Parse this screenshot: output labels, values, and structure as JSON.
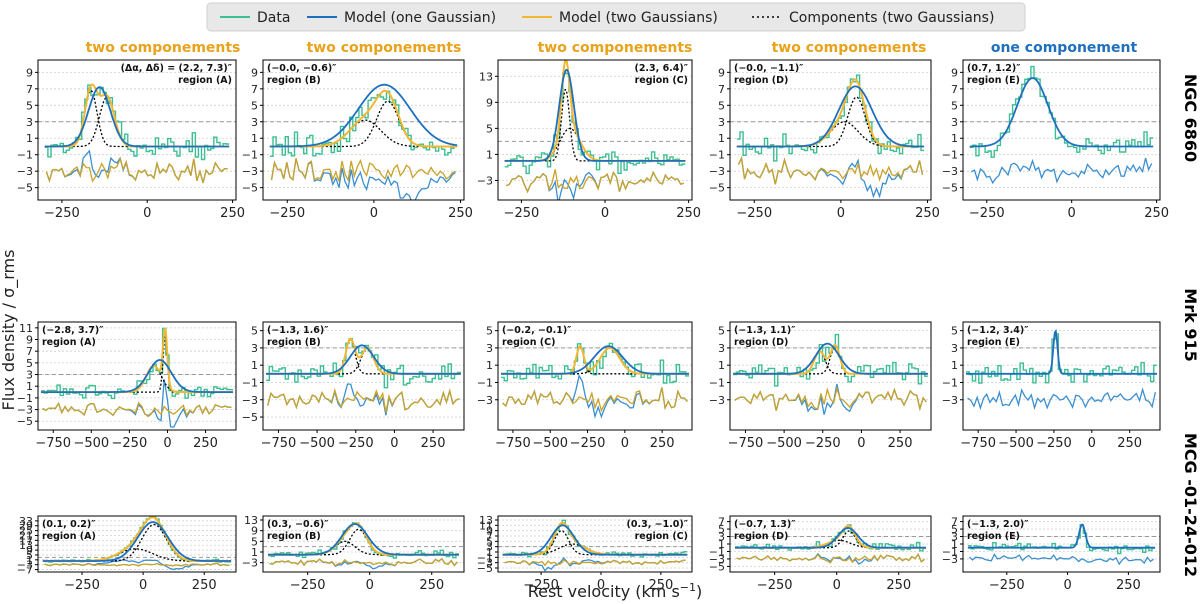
{
  "figure": {
    "ylabel": "Flux density / σ_rms",
    "xlabel_text": "Rest velocity (km s",
    "xlabel_sup": "−1",
    "xlabel_close": ")"
  },
  "colors": {
    "data": "#3dbf94",
    "one": "#1f6fbf",
    "two": "#f5b731",
    "comp": "#000000",
    "resid_one": "#3b8fd0",
    "resid_two": "#c9a227",
    "title_two": "#e9a21b",
    "title_one": "#1f6fbf"
  },
  "legend": {
    "items": [
      {
        "label": "Data",
        "style": "data"
      },
      {
        "label": "Model (one Gaussian)",
        "style": "one"
      },
      {
        "label": "Model (two Gaussians)",
        "style": "two"
      },
      {
        "label": "Components (two Gaussians)",
        "style": "comp"
      }
    ]
  },
  "column_titles": [
    {
      "text": "two componements",
      "kind": "two"
    },
    {
      "text": "two componements",
      "kind": "two"
    },
    {
      "text": "two componements",
      "kind": "two"
    },
    {
      "text": "two componements",
      "kind": "two"
    },
    {
      "text": "one componement",
      "kind": "one"
    }
  ],
  "row_labels": [
    "NGC 6860",
    "Mrk 915",
    "MCG -01-24-012"
  ],
  "chart_data": [
    {
      "type": "line",
      "row": 0,
      "col": 0,
      "xlim": [
        -320,
        260
      ],
      "ylim": [
        -6.5,
        10.5
      ],
      "xticks": [
        -250,
        0,
        250
      ],
      "yticks": [
        -5,
        -3,
        -1,
        1,
        3,
        5,
        7,
        9
      ],
      "offset": [
        2.2,
        7.3
      ],
      "region": "(A)",
      "offset_label": "(Δα, Δδ) = (2.2, 7.3)″",
      "label_pos": "right",
      "one_gauss": {
        "amp": 7.2,
        "mu": -140,
        "sigma": 32
      },
      "two_gauss": [
        {
          "amp": 6.8,
          "mu": -165,
          "sigma": 18
        },
        {
          "amp": 6.0,
          "mu": -118,
          "sigma": 22
        }
      ],
      "data_noise": 1.1,
      "resid_offset": -3
    },
    {
      "type": "line",
      "row": 0,
      "col": 1,
      "xlim": [
        -320,
        260
      ],
      "ylim": [
        -6.5,
        10.5
      ],
      "xticks": [
        -250,
        0,
        250
      ],
      "yticks": [
        -5,
        -3,
        -1,
        1,
        3,
        5,
        7,
        9
      ],
      "offset": [
        -0.0,
        -0.6
      ],
      "region": "(B)",
      "offset_label": "(−0.0, −0.6)″",
      "label_pos": "left",
      "one_gauss": {
        "amp": 7.5,
        "mu": 30,
        "sigma": 75
      },
      "two_gauss": [
        {
          "amp": 5.5,
          "mu": 40,
          "sigma": 32
        },
        {
          "amp": 3.2,
          "mu": -25,
          "sigma": 45
        }
      ],
      "data_noise": 1.2,
      "resid_offset": -3
    },
    {
      "type": "line",
      "row": 0,
      "col": 2,
      "xlim": [
        -320,
        260
      ],
      "ylim": [
        -6,
        15.5
      ],
      "xticks": [
        -250,
        0,
        250
      ],
      "yticks": [
        -3,
        1,
        5,
        9,
        13
      ],
      "offset": [
        2.3,
        6.4
      ],
      "region": "(C)",
      "offset_label": "(2.3, 6.4)″",
      "label_pos": "right",
      "one_gauss": {
        "amp": 14.0,
        "mu": -115,
        "sigma": 22
      },
      "two_gauss": [
        {
          "amp": 11.0,
          "mu": -118,
          "sigma": 12
        },
        {
          "amp": 5.0,
          "mu": -105,
          "sigma": 30
        }
      ],
      "data_noise": 1.3,
      "resid_offset": -3
    },
    {
      "type": "line",
      "row": 0,
      "col": 3,
      "xlim": [
        -320,
        260
      ],
      "ylim": [
        -6.5,
        10.5
      ],
      "xticks": [
        -250,
        0,
        250
      ],
      "yticks": [
        -5,
        -3,
        -1,
        1,
        3,
        5,
        7,
        9
      ],
      "offset": [
        -0.0,
        -1.1
      ],
      "region": "(D)",
      "offset_label": "(−0.0, −1.1)″",
      "label_pos": "left",
      "one_gauss": {
        "amp": 7.3,
        "mu": 42,
        "sigma": 48
      },
      "two_gauss": [
        {
          "amp": 6.0,
          "mu": 45,
          "sigma": 25
        },
        {
          "amp": 3.0,
          "mu": 10,
          "sigma": 40
        }
      ],
      "data_noise": 1.1,
      "resid_offset": -3
    },
    {
      "type": "line",
      "row": 0,
      "col": 4,
      "xlim": [
        -320,
        260
      ],
      "ylim": [
        -6.5,
        10.5
      ],
      "xticks": [
        -250,
        0,
        250
      ],
      "yticks": [
        -5,
        -3,
        -1,
        1,
        3,
        5,
        7,
        9
      ],
      "offset": [
        0.7,
        1.2
      ],
      "region": "(E)",
      "offset_label": "(0.7, 1.2)″",
      "label_pos": "left",
      "one_gauss": {
        "amp": 8.3,
        "mu": -115,
        "sigma": 45
      },
      "two_gauss": [],
      "data_noise": 1.2,
      "resid_offset": -3
    },
    {
      "type": "line",
      "row": 1,
      "col": 0,
      "xlim": [
        -850,
        450
      ],
      "ylim": [
        -6.5,
        12
      ],
      "xticks": [
        -750,
        -500,
        -250,
        0,
        250
      ],
      "yticks": [
        -5,
        -3,
        -1,
        1,
        3,
        5,
        7,
        9,
        11
      ],
      "offset": [
        -2.8,
        3.7
      ],
      "region": "(A)",
      "offset_label": "(−2.8, 3.7)″",
      "label_pos": "left",
      "one_gauss": {
        "amp": 5.5,
        "mu": -50,
        "sigma": 75
      },
      "two_gauss": [
        {
          "amp": 9.5,
          "mu": -15,
          "sigma": 14
        },
        {
          "amp": 4.5,
          "mu": -90,
          "sigma": 50
        }
      ],
      "data_noise": 1.0,
      "resid_offset": -3
    },
    {
      "type": "line",
      "row": 1,
      "col": 1,
      "xlim": [
        -850,
        450
      ],
      "ylim": [
        -6.5,
        6
      ],
      "xticks": [
        -750,
        -500,
        -250,
        0,
        250
      ],
      "yticks": [
        -5,
        -3,
        -1,
        1,
        3,
        5
      ],
      "offset": [
        -1.3,
        1.6
      ],
      "region": "(B)",
      "offset_label": "(−1.3, 1.6)″",
      "label_pos": "left",
      "one_gauss": {
        "amp": 3.3,
        "mu": -210,
        "sigma": 75
      },
      "two_gauss": [
        {
          "amp": 4.0,
          "mu": -285,
          "sigma": 30
        },
        {
          "amp": 3.0,
          "mu": -175,
          "sigma": 40
        }
      ],
      "data_noise": 1.1,
      "resid_offset": -3
    },
    {
      "type": "line",
      "row": 1,
      "col": 2,
      "xlim": [
        -850,
        450
      ],
      "ylim": [
        -6.5,
        6
      ],
      "xticks": [
        -750,
        -500,
        -250,
        0,
        250
      ],
      "yticks": [
        -3,
        -1,
        1,
        3,
        5
      ],
      "offset": [
        -0.2,
        -0.1
      ],
      "region": "(C)",
      "offset_label": "(−0.2, −0.1)″",
      "label_pos": "left",
      "one_gauss": {
        "amp": 3.2,
        "mu": -110,
        "sigma": 95
      },
      "two_gauss": [
        {
          "amp": 3.2,
          "mu": -300,
          "sigma": 25
        },
        {
          "amp": 3.0,
          "mu": -100,
          "sigma": 65
        }
      ],
      "data_noise": 1.1,
      "resid_offset": -3
    },
    {
      "type": "line",
      "row": 1,
      "col": 3,
      "xlim": [
        -850,
        450
      ],
      "ylim": [
        -6.5,
        6
      ],
      "xticks": [
        -750,
        -500,
        -250,
        0,
        250
      ],
      "yticks": [
        -3,
        -1,
        1,
        3,
        5
      ],
      "offset": [
        -1.3,
        1.1
      ],
      "region": "(D)",
      "offset_label": "(−1.3, 1.1)″",
      "label_pos": "left",
      "one_gauss": {
        "amp": 3.5,
        "mu": -220,
        "sigma": 75
      },
      "two_gauss": [
        {
          "amp": 3.3,
          "mu": -170,
          "sigma": 30
        },
        {
          "amp": 2.6,
          "mu": -270,
          "sigma": 35
        }
      ],
      "data_noise": 1.0,
      "resid_offset": -3
    },
    {
      "type": "line",
      "row": 1,
      "col": 4,
      "xlim": [
        -850,
        450
      ],
      "ylim": [
        -6.5,
        6
      ],
      "xticks": [
        -750,
        -500,
        -250,
        0,
        250
      ],
      "yticks": [
        -3,
        -1,
        1,
        3,
        5
      ],
      "offset": [
        -1.2,
        3.4
      ],
      "region": "(E)",
      "offset_label": "(−1.2, 3.4)″",
      "label_pos": "left",
      "one_gauss": {
        "amp": 5.0,
        "mu": -240,
        "sigma": 14
      },
      "two_gauss": [],
      "data_noise": 1.0,
      "resid_offset": -3
    },
    {
      "type": "line",
      "row": 2,
      "col": 0,
      "xlim": [
        -430,
        380
      ],
      "ylim": [
        -9,
        37
      ],
      "xticks": [
        -250,
        0,
        250
      ],
      "yticks": [
        -7,
        -3,
        1,
        5,
        9,
        13,
        17,
        21,
        25,
        29,
        33
      ],
      "offset": [
        0.1,
        0.2
      ],
      "region": "(A)",
      "offset_label": "(0.1, 0.2)″",
      "label_pos": "left",
      "one_gauss": {
        "amp": 32.0,
        "mu": 40,
        "sigma": 62
      },
      "two_gauss": [
        {
          "amp": 30.0,
          "mu": 45,
          "sigma": 50
        },
        {
          "amp": 10.0,
          "mu": -30,
          "sigma": 70
        }
      ],
      "data_noise": 1.0,
      "resid_offset": -3
    },
    {
      "type": "line",
      "row": 2,
      "col": 1,
      "xlim": [
        -430,
        380
      ],
      "ylim": [
        -6.5,
        14.5
      ],
      "xticks": [
        -250,
        0,
        250
      ],
      "yticks": [
        -3,
        1,
        5,
        9,
        13
      ],
      "offset": [
        0.3,
        -0.6
      ],
      "region": "(B)",
      "offset_label": "(0.3, −0.6)″",
      "label_pos": "left",
      "one_gauss": {
        "amp": 11.5,
        "mu": -60,
        "sigma": 52
      },
      "two_gauss": [
        {
          "amp": 9.5,
          "mu": -45,
          "sigma": 35
        },
        {
          "amp": 5.0,
          "mu": -100,
          "sigma": 40
        }
      ],
      "data_noise": 1.0,
      "resid_offset": -3
    },
    {
      "type": "line",
      "row": 2,
      "col": 2,
      "xlim": [
        -430,
        380
      ],
      "ylim": [
        -6.5,
        14.5
      ],
      "xticks": [
        -250,
        0,
        250
      ],
      "yticks": [
        -5,
        -3,
        -1,
        1,
        3,
        5,
        7,
        9,
        11,
        13
      ],
      "offset": [
        0.3,
        -1.0
      ],
      "region": "(C)",
      "offset_label": "(0.3, −1.0)″",
      "label_pos": "right",
      "one_gauss": {
        "amp": 11.0,
        "mu": -160,
        "sigma": 48
      },
      "two_gauss": [
        {
          "amp": 9.0,
          "mu": -165,
          "sigma": 30
        },
        {
          "amp": 4.0,
          "mu": -120,
          "sigma": 55
        }
      ],
      "data_noise": 1.0,
      "resid_offset": -3
    },
    {
      "type": "line",
      "row": 2,
      "col": 3,
      "xlim": [
        -430,
        380
      ],
      "ylim": [
        -6.5,
        8.5
      ],
      "xticks": [
        -250,
        0,
        250
      ],
      "yticks": [
        -5,
        -3,
        -1,
        1,
        3,
        5,
        7
      ],
      "offset": [
        -0.7,
        1.3
      ],
      "region": "(D)",
      "offset_label": "(−0.7, 1.3)″",
      "label_pos": "left",
      "one_gauss": {
        "amp": 5.3,
        "mu": 45,
        "sigma": 40
      },
      "two_gauss": [
        {
          "amp": 4.5,
          "mu": 50,
          "sigma": 25
        },
        {
          "amp": 2.0,
          "mu": 10,
          "sigma": 45
        }
      ],
      "data_noise": 1.0,
      "resid_offset": -3
    },
    {
      "type": "line",
      "row": 2,
      "col": 4,
      "xlim": [
        -430,
        380
      ],
      "ylim": [
        -6.5,
        8.5
      ],
      "xticks": [
        -250,
        0,
        250
      ],
      "yticks": [
        -3,
        -1,
        1,
        3,
        5,
        7
      ],
      "offset": [
        -1.3,
        2.0
      ],
      "region": "(E)",
      "offset_label": "(−1.3, 2.0)″",
      "label_pos": "left",
      "one_gauss": {
        "amp": 6.2,
        "mu": 60,
        "sigma": 13
      },
      "two_gauss": [],
      "data_noise": 1.0,
      "resid_offset": -3
    }
  ]
}
